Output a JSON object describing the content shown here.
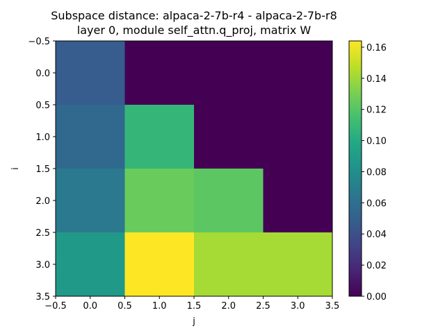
{
  "chart_data": {
    "type": "heatmap",
    "title_line1": "Subspace distance: alpaca-2-7b-r4 - alpaca-2-7b-r8",
    "title_line2": "layer 0, module self_attn.q_proj, matrix W",
    "xlabel": "j",
    "ylabel": "i",
    "x_tick_labels": [
      "−0.5",
      "0.0",
      "0.5",
      "1.0",
      "1.5",
      "2.0",
      "2.5",
      "3.0",
      "3.5"
    ],
    "y_tick_labels": [
      "−0.5",
      "0.0",
      "0.5",
      "1.0",
      "1.5",
      "2.0",
      "2.5",
      "3.0",
      "3.5"
    ],
    "x_ticks": [
      -0.5,
      0.0,
      0.5,
      1.0,
      1.5,
      2.0,
      2.5,
      3.0,
      3.5
    ],
    "y_ticks": [
      -0.5,
      0.0,
      0.5,
      1.0,
      1.5,
      2.0,
      2.5,
      3.0,
      3.5
    ],
    "xlim": [
      -0.5,
      3.5
    ],
    "ylim": [
      3.5,
      -0.5
    ],
    "colormap": "viridis",
    "colorbar": {
      "vmin": 0.0,
      "vmax": 0.164,
      "ticks": [
        0.0,
        0.02,
        0.04,
        0.06,
        0.08,
        0.1,
        0.12,
        0.14,
        0.16
      ],
      "tick_labels": [
        "0.00",
        "0.02",
        "0.04",
        "0.06",
        "0.08",
        "0.10",
        "0.12",
        "0.14",
        "0.16"
      ]
    },
    "values": [
      [
        0.048,
        0.0,
        0.0,
        0.0
      ],
      [
        0.056,
        0.108,
        0.0,
        0.0
      ],
      [
        0.066,
        0.126,
        0.122,
        0.0
      ],
      [
        0.088,
        0.164,
        0.142,
        0.142
      ]
    ]
  }
}
